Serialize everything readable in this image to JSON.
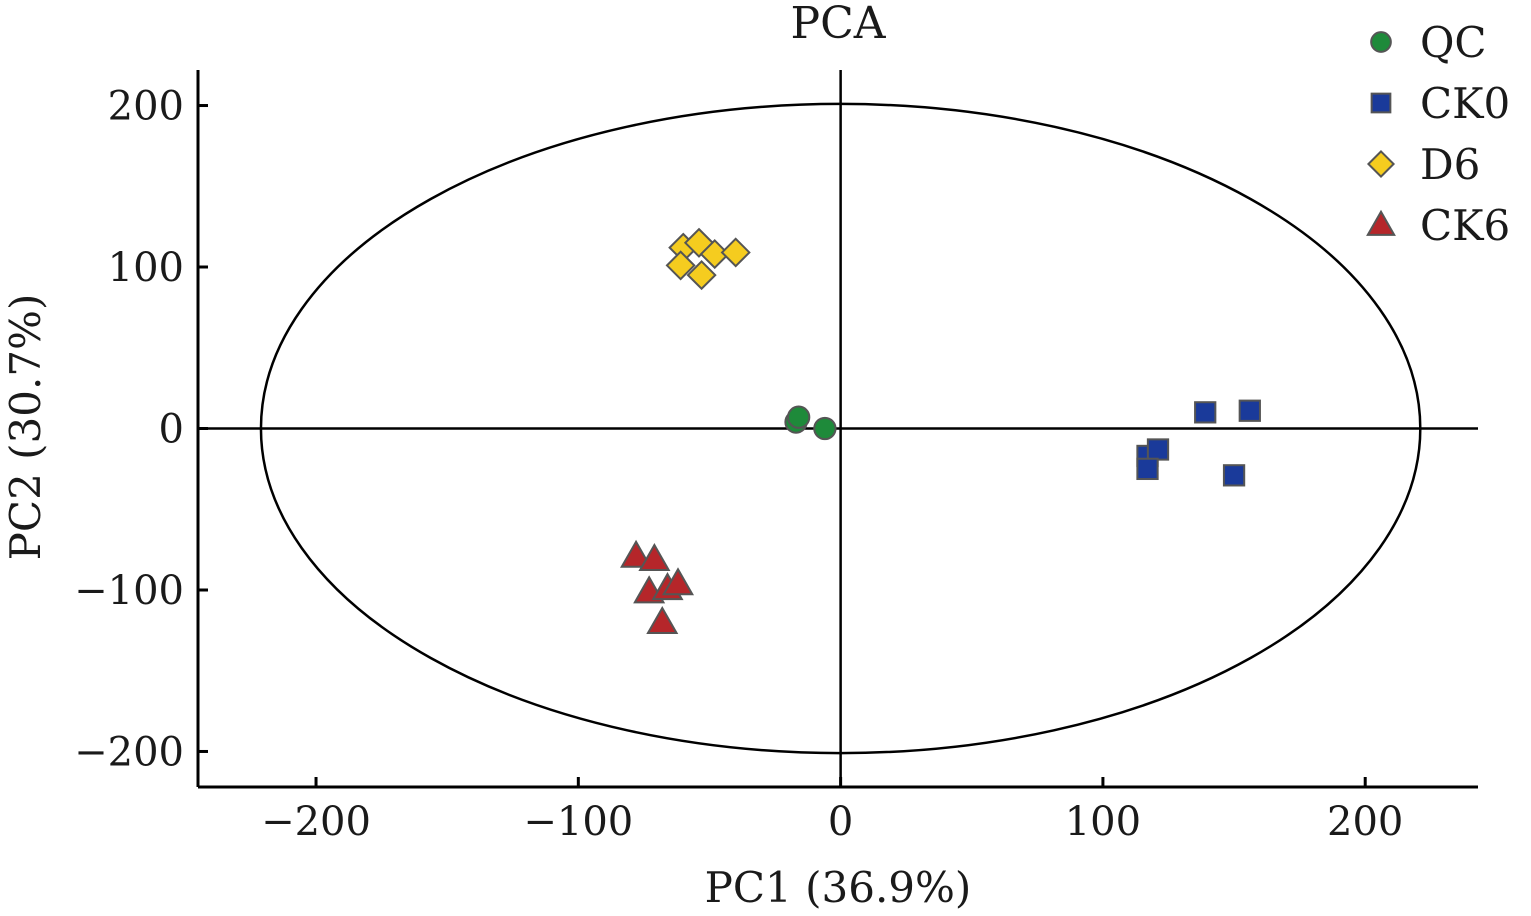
{
  "chart_data": {
    "type": "scatter",
    "title": "PCA",
    "xlabel": "PC1 (36.9%)",
    "ylabel": "PC2 (30.7%)",
    "xlim": [
      -245,
      243
    ],
    "ylim": [
      -222,
      222
    ],
    "xticks": [
      -200,
      -100,
      0,
      100,
      200
    ],
    "yticks": [
      -200,
      -100,
      0,
      100,
      200
    ],
    "xtick_labels": [
      "−200",
      "−100",
      "0",
      "100",
      "200"
    ],
    "ytick_labels": [
      "−200",
      "−100",
      "0",
      "100",
      "200"
    ],
    "zero_lines": true,
    "confidence_ellipse": {
      "cx": 0,
      "cy": 0,
      "rx": 221,
      "ry": 201
    },
    "legend_position": "top-right",
    "series": [
      {
        "name": "QC",
        "marker": "circle",
        "color": "#1e8a3a",
        "points": [
          [
            -17,
            4
          ],
          [
            -16,
            7
          ],
          [
            -6,
            0
          ]
        ]
      },
      {
        "name": "CK0",
        "marker": "square",
        "color": "#1a3a9a",
        "points": [
          [
            117,
            -17
          ],
          [
            121,
            -13
          ],
          [
            117,
            -25
          ],
          [
            139,
            10
          ],
          [
            156,
            11
          ],
          [
            150,
            -29
          ]
        ]
      },
      {
        "name": "D6",
        "marker": "diamond",
        "color": "#f5cc1f",
        "points": [
          [
            -60,
            112
          ],
          [
            -54,
            115
          ],
          [
            -48,
            108
          ],
          [
            -40,
            109
          ],
          [
            -61,
            101
          ],
          [
            -53,
            95
          ]
        ]
      },
      {
        "name": "CK6",
        "marker": "triangle",
        "color": "#b5262a",
        "points": [
          [
            -78,
            -79
          ],
          [
            -71,
            -81
          ],
          [
            -73,
            -101
          ],
          [
            -66,
            -99
          ],
          [
            -62,
            -96
          ],
          [
            -68,
            -120
          ]
        ]
      }
    ]
  }
}
